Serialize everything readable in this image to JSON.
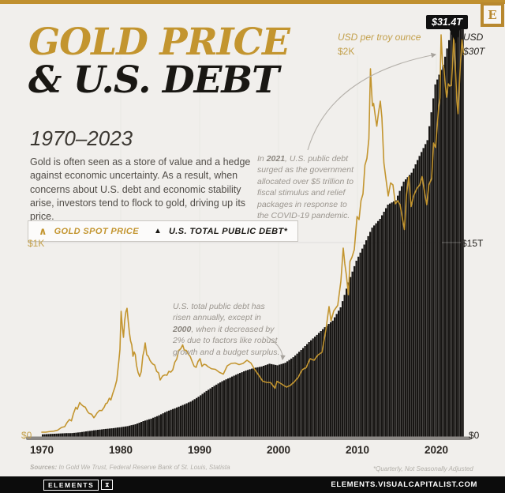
{
  "meta": {
    "brand_letter": "E",
    "badge": "$31.4T"
  },
  "header": {
    "title_line1": "GOLD PRICE",
    "title_line2": "& U.S. DEBT",
    "subtitle": "1970–2023",
    "intro": "Gold is often seen as a store of value and a hedge against economic uncertainty. As a result, when concerns about U.S. debt and economic stability arise, investors tend to flock to gold, driving up its price."
  },
  "legend": {
    "gold_glyph": "∧",
    "gold_label": "GOLD SPOT PRICE",
    "debt_glyph": "▲",
    "debt_label": "U.S. TOTAL PUBLIC DEBT*"
  },
  "axis": {
    "left_unit": "USD per troy ounce",
    "left_top": "$2K",
    "left_mid": "$1K",
    "left_zero": "$0",
    "right_unit": "USD",
    "right_top": "$30T",
    "right_mid": "$15T",
    "right_zero": "$0",
    "x_ticks": [
      "1970",
      "1980",
      "1990",
      "2000",
      "2010",
      "2020"
    ]
  },
  "annotations": {
    "a1_pre": "In ",
    "a1_bold": "2021",
    "a1_post": ", U.S. public debt surged as the government allocated over $5 trillion to fiscal stimulus and relief packages in response to the COVID-19 pandemic.",
    "a2_pre": "U.S. total public debt has risen annually, except in ",
    "a2_bold": "2000",
    "a2_post": ", when it decreased by 2% due to factors like robust growth and a budget surplus."
  },
  "footer": {
    "sources_label": "Sources:",
    "sources": " In Gold We Trust, Federal Reserve Bank of St. Louis, Statista",
    "footnote": "*Quarterly, Not Seasonally Adjusted",
    "logo_wordmark": "ELEMENTS",
    "logo_icon": "⧗",
    "site": "ELEMENTS.VISUALCAPITALIST.COM"
  },
  "colors": {
    "background": "#f1efec",
    "gold": "#c3952f",
    "bar": "#171513",
    "baseline": "#8b8885"
  },
  "chart_data": {
    "type": "line",
    "title": "Gold Price & U.S. Debt 1970–2023",
    "x_range": [
      1970,
      2023.5
    ],
    "grid_decades": [
      1980,
      1990,
      2000,
      2010,
      2020
    ],
    "series": [
      {
        "name": "Gold spot price",
        "type": "line",
        "axis": "left",
        "unit": "USD per troy ounce",
        "ylim": [
          0,
          2000
        ],
        "points": [
          [
            1970,
            36
          ],
          [
            1970.5,
            36
          ],
          [
            1971,
            39
          ],
          [
            1971.5,
            41
          ],
          [
            1972,
            46
          ],
          [
            1972.5,
            60
          ],
          [
            1972.9,
            64
          ],
          [
            1973.2,
            85
          ],
          [
            1973.5,
            100
          ],
          [
            1973.75,
            93
          ],
          [
            1974,
            129
          ],
          [
            1974.3,
            162
          ],
          [
            1974.5,
            152
          ],
          [
            1974.8,
            186
          ],
          [
            1975,
            176
          ],
          [
            1975.3,
            166
          ],
          [
            1975.5,
            163
          ],
          [
            1975.8,
            140
          ],
          [
            1976,
            131
          ],
          [
            1976.3,
            127
          ],
          [
            1976.6,
            109
          ],
          [
            1976.8,
            120
          ],
          [
            1977,
            133
          ],
          [
            1977.3,
            146
          ],
          [
            1977.6,
            145
          ],
          [
            1977.9,
            162
          ],
          [
            1978.1,
            180
          ],
          [
            1978.3,
            184
          ],
          [
            1978.55,
            208
          ],
          [
            1978.75,
            199
          ],
          [
            1979,
            233
          ],
          [
            1979.25,
            262
          ],
          [
            1979.5,
            300
          ],
          [
            1979.75,
            392
          ],
          [
            1979.9,
            455
          ],
          [
            1980.05,
            648
          ],
          [
            1980.2,
            570
          ],
          [
            1980.35,
            516
          ],
          [
            1980.5,
            600
          ],
          [
            1980.65,
            645
          ],
          [
            1980.8,
            663
          ],
          [
            1980.95,
            598
          ],
          [
            1981.1,
            540
          ],
          [
            1981.25,
            498
          ],
          [
            1981.4,
            478
          ],
          [
            1981.55,
            420
          ],
          [
            1981.7,
            442
          ],
          [
            1981.85,
            428
          ],
          [
            1982,
            375
          ],
          [
            1982.2,
            338
          ],
          [
            1982.4,
            318
          ],
          [
            1982.6,
            342
          ],
          [
            1982.8,
            422
          ],
          [
            1982.95,
            448
          ],
          [
            1983.1,
            488
          ],
          [
            1983.3,
            428
          ],
          [
            1983.5,
            420
          ],
          [
            1983.7,
            400
          ],
          [
            1983.9,
            388
          ],
          [
            1984.1,
            380
          ],
          [
            1984.3,
            376
          ],
          [
            1984.55,
            344
          ],
          [
            1984.8,
            336
          ],
          [
            1985,
            300
          ],
          [
            1985.3,
            320
          ],
          [
            1985.6,
            326
          ],
          [
            1985.85,
            324
          ],
          [
            1986.1,
            344
          ],
          [
            1986.35,
            340
          ],
          [
            1986.6,
            352
          ],
          [
            1986.85,
            390
          ],
          [
            1987.1,
            406
          ],
          [
            1987.35,
            450
          ],
          [
            1987.6,
            458
          ],
          [
            1987.85,
            478
          ],
          [
            1988.05,
            452
          ],
          [
            1988.3,
            450
          ],
          [
            1988.55,
            432
          ],
          [
            1988.8,
            420
          ],
          [
            1989.05,
            394
          ],
          [
            1989.3,
            370
          ],
          [
            1989.55,
            364
          ],
          [
            1989.8,
            394
          ],
          [
            1990.05,
            408
          ],
          [
            1990.3,
            369
          ],
          [
            1990.55,
            380
          ],
          [
            1990.8,
            377
          ],
          [
            1991.05,
            368
          ],
          [
            1991.5,
            357
          ],
          [
            1992,
            354
          ],
          [
            1992.5,
            339
          ],
          [
            1993,
            330
          ],
          [
            1993.5,
            372
          ],
          [
            1994,
            384
          ],
          [
            1994.5,
            386
          ],
          [
            1995,
            378
          ],
          [
            1995.5,
            384
          ],
          [
            1996,
            400
          ],
          [
            1996.5,
            386
          ],
          [
            1997,
            352
          ],
          [
            1997.5,
            324
          ],
          [
            1998,
            294
          ],
          [
            1998.5,
            288
          ],
          [
            1999,
            287
          ],
          [
            1999.55,
            258
          ],
          [
            1999.8,
            293
          ],
          [
            2000.05,
            288
          ],
          [
            2000.5,
            277
          ],
          [
            2001,
            264
          ],
          [
            2001.5,
            273
          ],
          [
            2002,
            291
          ],
          [
            2002.5,
            314
          ],
          [
            2003,
            352
          ],
          [
            2003.5,
            363
          ],
          [
            2004,
            408
          ],
          [
            2004.5,
            400
          ],
          [
            2005,
            427
          ],
          [
            2005.5,
            440
          ],
          [
            2006,
            554
          ],
          [
            2006.4,
            672
          ],
          [
            2006.65,
            600
          ],
          [
            2007,
            650
          ],
          [
            2007.5,
            678
          ],
          [
            2007.9,
            800
          ],
          [
            2008.2,
            968
          ],
          [
            2008.4,
            888
          ],
          [
            2008.6,
            830
          ],
          [
            2008.85,
            732
          ],
          [
            2009.05,
            900
          ],
          [
            2009.3,
            921
          ],
          [
            2009.6,
            960
          ],
          [
            2009.95,
            1128
          ],
          [
            2010.2,
            1112
          ],
          [
            2010.45,
            1208
          ],
          [
            2010.7,
            1242
          ],
          [
            2010.95,
            1388
          ],
          [
            2011.2,
            1422
          ],
          [
            2011.45,
            1522
          ],
          [
            2011.65,
            1876
          ],
          [
            2011.78,
            1772
          ],
          [
            2011.9,
            1688
          ],
          [
            2012.05,
            1700
          ],
          [
            2012.25,
            1640
          ],
          [
            2012.45,
            1585
          ],
          [
            2012.7,
            1662
          ],
          [
            2012.9,
            1712
          ],
          [
            2013.1,
            1628
          ],
          [
            2013.35,
            1400
          ],
          [
            2013.6,
            1322
          ],
          [
            2013.9,
            1232
          ],
          [
            2014.2,
            1298
          ],
          [
            2014.5,
            1288
          ],
          [
            2014.8,
            1192
          ],
          [
            2015.1,
            1208
          ],
          [
            2015.4,
            1188
          ],
          [
            2015.7,
            1118
          ],
          [
            2015.95,
            1062
          ],
          [
            2016.2,
            1232
          ],
          [
            2016.5,
            1330
          ],
          [
            2016.8,
            1178
          ],
          [
            2017.1,
            1230
          ],
          [
            2017.5,
            1268
          ],
          [
            2017.9,
            1288
          ],
          [
            2018.2,
            1330
          ],
          [
            2018.5,
            1252
          ],
          [
            2018.78,
            1188
          ],
          [
            2019.05,
            1288
          ],
          [
            2019.4,
            1320
          ],
          [
            2019.65,
            1500
          ],
          [
            2019.9,
            1478
          ],
          [
            2020.1,
            1582
          ],
          [
            2020.3,
            1682
          ],
          [
            2020.45,
            1728
          ],
          [
            2020.6,
            2048
          ],
          [
            2020.78,
            1902
          ],
          [
            2020.95,
            1878
          ],
          [
            2021.15,
            1788
          ],
          [
            2021.3,
            1732
          ],
          [
            2021.5,
            1800
          ],
          [
            2021.7,
            1788
          ],
          [
            2021.9,
            1792
          ],
          [
            2022.05,
            1900
          ],
          [
            2022.2,
            2040
          ],
          [
            2022.45,
            1848
          ],
          [
            2022.6,
            1712
          ],
          [
            2022.75,
            1648
          ],
          [
            2022.9,
            1782
          ],
          [
            2023.05,
            1902
          ],
          [
            2023.25,
            2022
          ],
          [
            2023.45,
            1948
          ]
        ]
      },
      {
        "name": "U.S. total public debt (quarterly, not seasonally adjusted)",
        "type": "bar",
        "axis": "right",
        "unit": "USD trillions",
        "ylim": [
          0,
          31.4
        ],
        "peak_label": "$31.4T",
        "points": [
          [
            1970,
            0.37
          ],
          [
            1971,
            0.4
          ],
          [
            1972,
            0.43
          ],
          [
            1973,
            0.46
          ],
          [
            1974,
            0.47
          ],
          [
            1975,
            0.53
          ],
          [
            1976,
            0.62
          ],
          [
            1977,
            0.7
          ],
          [
            1978,
            0.77
          ],
          [
            1979,
            0.83
          ],
          [
            1980,
            0.91
          ],
          [
            1981,
            1.0
          ],
          [
            1982,
            1.14
          ],
          [
            1983,
            1.38
          ],
          [
            1984,
            1.57
          ],
          [
            1985,
            1.82
          ],
          [
            1986,
            2.12
          ],
          [
            1987,
            2.35
          ],
          [
            1988,
            2.6
          ],
          [
            1989,
            2.86
          ],
          [
            1990,
            3.23
          ],
          [
            1991,
            3.67
          ],
          [
            1992,
            4.06
          ],
          [
            1993,
            4.41
          ],
          [
            1994,
            4.69
          ],
          [
            1995,
            4.97
          ],
          [
            1996,
            5.22
          ],
          [
            1997,
            5.41
          ],
          [
            1998,
            5.53
          ],
          [
            1999,
            5.74
          ],
          [
            2000,
            5.62
          ],
          [
            2001,
            5.81
          ],
          [
            2002,
            6.23
          ],
          [
            2003,
            6.78
          ],
          [
            2004,
            7.38
          ],
          [
            2005,
            7.93
          ],
          [
            2006,
            8.51
          ],
          [
            2007,
            9.01
          ],
          [
            2008,
            10.02
          ],
          [
            2009,
            11.91
          ],
          [
            2010,
            13.56
          ],
          [
            2011,
            14.79
          ],
          [
            2012,
            16.07
          ],
          [
            2013,
            16.74
          ],
          [
            2014,
            17.82
          ],
          [
            2015,
            18.15
          ],
          [
            2016,
            19.57
          ],
          [
            2017,
            20.24
          ],
          [
            2018,
            21.52
          ],
          [
            2019,
            22.72
          ],
          [
            2020,
            26.95
          ],
          [
            2021,
            28.43
          ],
          [
            2022,
            30.93
          ],
          [
            2023.5,
            31.4
          ]
        ]
      }
    ]
  }
}
